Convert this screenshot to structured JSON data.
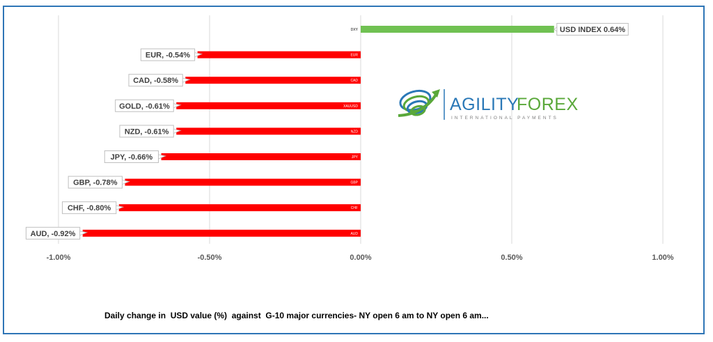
{
  "chart_data": {
    "type": "bar",
    "orientation": "horizontal",
    "categories": [
      "DXY",
      "EUR",
      "CAD",
      "XAUUSD",
      "NZD",
      "JPY",
      "GBP",
      "CHF",
      "AUD"
    ],
    "values": [
      0.64,
      -0.54,
      -0.58,
      -0.61,
      -0.61,
      -0.66,
      -0.78,
      -0.8,
      -0.92
    ],
    "data_labels": [
      "USD INDEX 0.64%",
      "EUR, -0.54%",
      "CAD, -0.58%",
      "GOLD, -0.61%",
      "NZD, -0.61%",
      "JPY, -0.66%",
      "GBP, -0.78%",
      "CHF, -0.80%",
      "AUD, -0.92%"
    ],
    "xlim": [
      -1.0,
      1.0
    ],
    "x_ticks": [
      -1.0,
      -0.5,
      0.0,
      0.5,
      1.0
    ],
    "x_tick_labels": [
      "-1.00%",
      "-0.50%",
      "0.00%",
      "0.50%",
      "1.00%"
    ],
    "grid": "vertical",
    "colors": {
      "positive": "#70c152",
      "negative": "#ff0000",
      "grid": "#d9d9d9",
      "frame": "#2e75b6"
    },
    "caption": "Daily change in  USD value (%)  against  G-10 major currencies- NY open 6 am to NY open 6 am..."
  },
  "logo": {
    "brand_left": "AGILITY",
    "brand_right": "FOREX",
    "tagline": "INTERNATIONAL PAYMENTS",
    "colors": {
      "blue": "#2a78b7",
      "green": "#5aa83a"
    }
  }
}
